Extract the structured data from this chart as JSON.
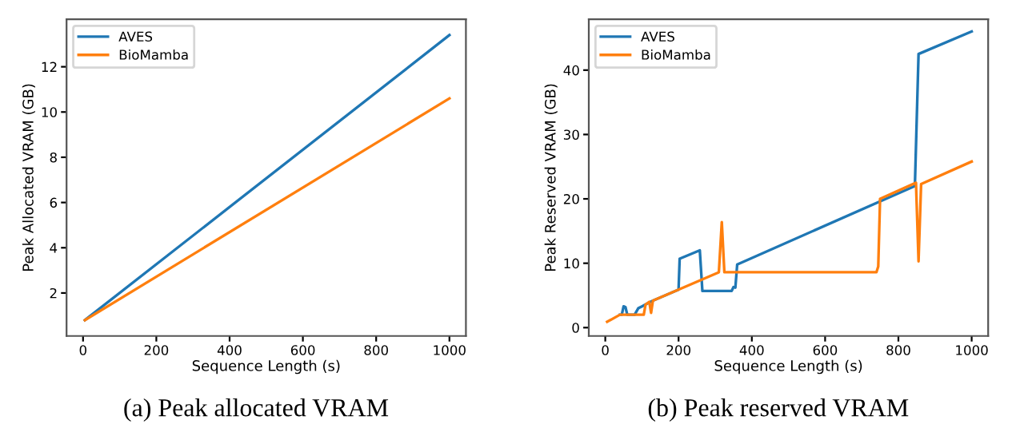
{
  "chart_data": [
    {
      "type": "line",
      "xlabel": "Sequence Length (s)",
      "ylabel": "Peak Allocated VRAM (GB)",
      "annotations": [
        "(a) Peak allocated VRAM"
      ],
      "xlim": [
        -45,
        1045
      ],
      "ylim": [
        0.1,
        14.1
      ],
      "xticks": [
        0,
        200,
        400,
        600,
        800,
        1000
      ],
      "yticks": [
        2,
        4,
        6,
        8,
        10,
        12
      ],
      "legend": "top left",
      "grid": false,
      "series": [
        {
          "name": "AVES",
          "color": "#1f77b4",
          "x": [
            5,
            1000
          ],
          "values": [
            0.8,
            13.4
          ]
        },
        {
          "name": "BioMamba",
          "color": "#ff7f0e",
          "x": [
            5,
            1000
          ],
          "values": [
            0.8,
            10.6
          ]
        }
      ]
    },
    {
      "type": "line",
      "xlabel": "Sequence Length (s)",
      "ylabel": "Peak Reserved VRAM (GB)",
      "annotations": [
        "(b) Peak reserved VRAM"
      ],
      "xlim": [
        -45,
        1045
      ],
      "ylim": [
        -1.3,
        47.9
      ],
      "xticks": [
        0,
        200,
        400,
        600,
        800,
        1000
      ],
      "yticks": [
        0,
        10,
        20,
        30,
        40
      ],
      "legend": "top left",
      "grid": false,
      "series": [
        {
          "name": "AVES",
          "color": "#1f77b4",
          "x": [
            40,
            45,
            50,
            55,
            60,
            80,
            90,
            100,
            110,
            130,
            200,
            203,
            258,
            265,
            345,
            350,
            355,
            360,
            845,
            855,
            1000
          ],
          "values": [
            2,
            2,
            3.3,
            3.2,
            2,
            2,
            3,
            3.3,
            3.6,
            4.2,
            5.9,
            10.7,
            12,
            5.7,
            5.7,
            6.3,
            6.2,
            9.8,
            22,
            42.5,
            46
          ]
        },
        {
          "name": "BioMamba",
          "color": "#ff7f0e",
          "x": [
            5,
            40,
            105,
            110,
            120,
            125,
            130,
            310,
            318,
            325,
            740,
            745,
            750,
            848,
            855,
            862,
            1000
          ],
          "values": [
            0.9,
            2,
            2,
            3.6,
            4,
            2.3,
            4.2,
            8.6,
            16.4,
            8.6,
            8.6,
            9.5,
            20,
            22.5,
            10.3,
            22.3,
            25.8
          ]
        }
      ]
    }
  ]
}
